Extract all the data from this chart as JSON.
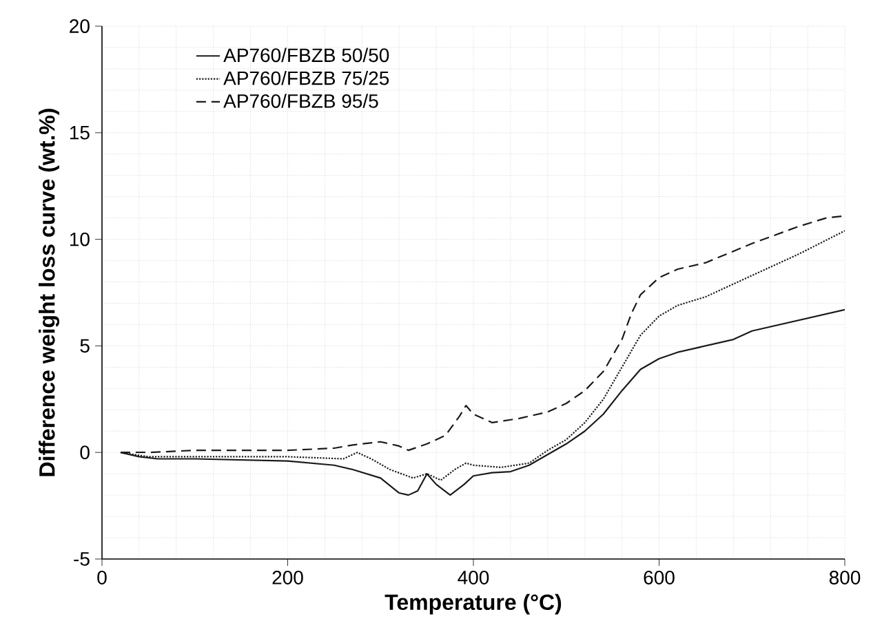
{
  "chart_data": {
    "type": "line",
    "xlabel": "Temperature (°C)",
    "ylabel": "Difference weight loss curve (wt.%)",
    "xlim": [
      0,
      800
    ],
    "ylim": [
      -5,
      20
    ],
    "xticks": [
      0,
      200,
      400,
      600,
      800
    ],
    "yticks": [
      -5,
      0,
      5,
      10,
      15,
      20
    ],
    "grid": true,
    "legend": "top left",
    "series": [
      {
        "name": "AP760/FBZB 50/50",
        "color": "#1a1a1a",
        "line_style": "solid",
        "x": [
          20,
          40,
          60,
          100,
          200,
          250,
          270,
          300,
          320,
          330,
          340,
          350,
          360,
          375,
          390,
          400,
          420,
          440,
          460,
          480,
          500,
          520,
          540,
          560,
          580,
          600,
          620,
          650,
          680,
          700,
          750,
          800
        ],
        "values": [
          0,
          -0.2,
          -0.3,
          -0.3,
          -0.4,
          -0.6,
          -0.8,
          -1.2,
          -1.9,
          -2.0,
          -1.8,
          -1.0,
          -1.5,
          -2.0,
          -1.5,
          -1.1,
          -0.95,
          -0.9,
          -0.6,
          -0.1,
          0.4,
          1.0,
          1.8,
          2.9,
          3.9,
          4.4,
          4.7,
          5.0,
          5.3,
          5.7,
          6.2,
          6.7
        ]
      },
      {
        "name": "AP760/FBZB 75/25",
        "color": "#1a1a1a",
        "line_style": "dotted",
        "x": [
          20,
          50,
          100,
          200,
          260,
          275,
          290,
          310,
          335,
          350,
          365,
          380,
          392,
          400,
          430,
          460,
          480,
          500,
          520,
          540,
          560,
          580,
          600,
          620,
          650,
          700,
          750,
          800
        ],
        "values": [
          0,
          -0.2,
          -0.2,
          -0.2,
          -0.3,
          0.0,
          -0.3,
          -0.8,
          -1.2,
          -1.0,
          -1.3,
          -0.8,
          -0.5,
          -0.6,
          -0.7,
          -0.5,
          0.1,
          0.6,
          1.4,
          2.5,
          4.0,
          5.5,
          6.4,
          6.9,
          7.3,
          8.3,
          9.3,
          10.4
        ]
      },
      {
        "name": "AP760/FBZB 95/5",
        "color": "#1a1a1a",
        "line_style": "dashed",
        "x": [
          20,
          50,
          100,
          200,
          250,
          270,
          300,
          320,
          330,
          350,
          370,
          385,
          392,
          400,
          420,
          450,
          480,
          500,
          520,
          540,
          560,
          570,
          580,
          600,
          620,
          650,
          700,
          750,
          780,
          800
        ],
        "values": [
          0,
          0,
          0.1,
          0.1,
          0.2,
          0.35,
          0.5,
          0.3,
          0.1,
          0.4,
          0.8,
          1.7,
          2.2,
          1.8,
          1.4,
          1.6,
          1.9,
          2.3,
          2.9,
          3.8,
          5.3,
          6.5,
          7.4,
          8.2,
          8.6,
          8.9,
          9.8,
          10.6,
          11.0,
          11.1
        ]
      }
    ]
  }
}
